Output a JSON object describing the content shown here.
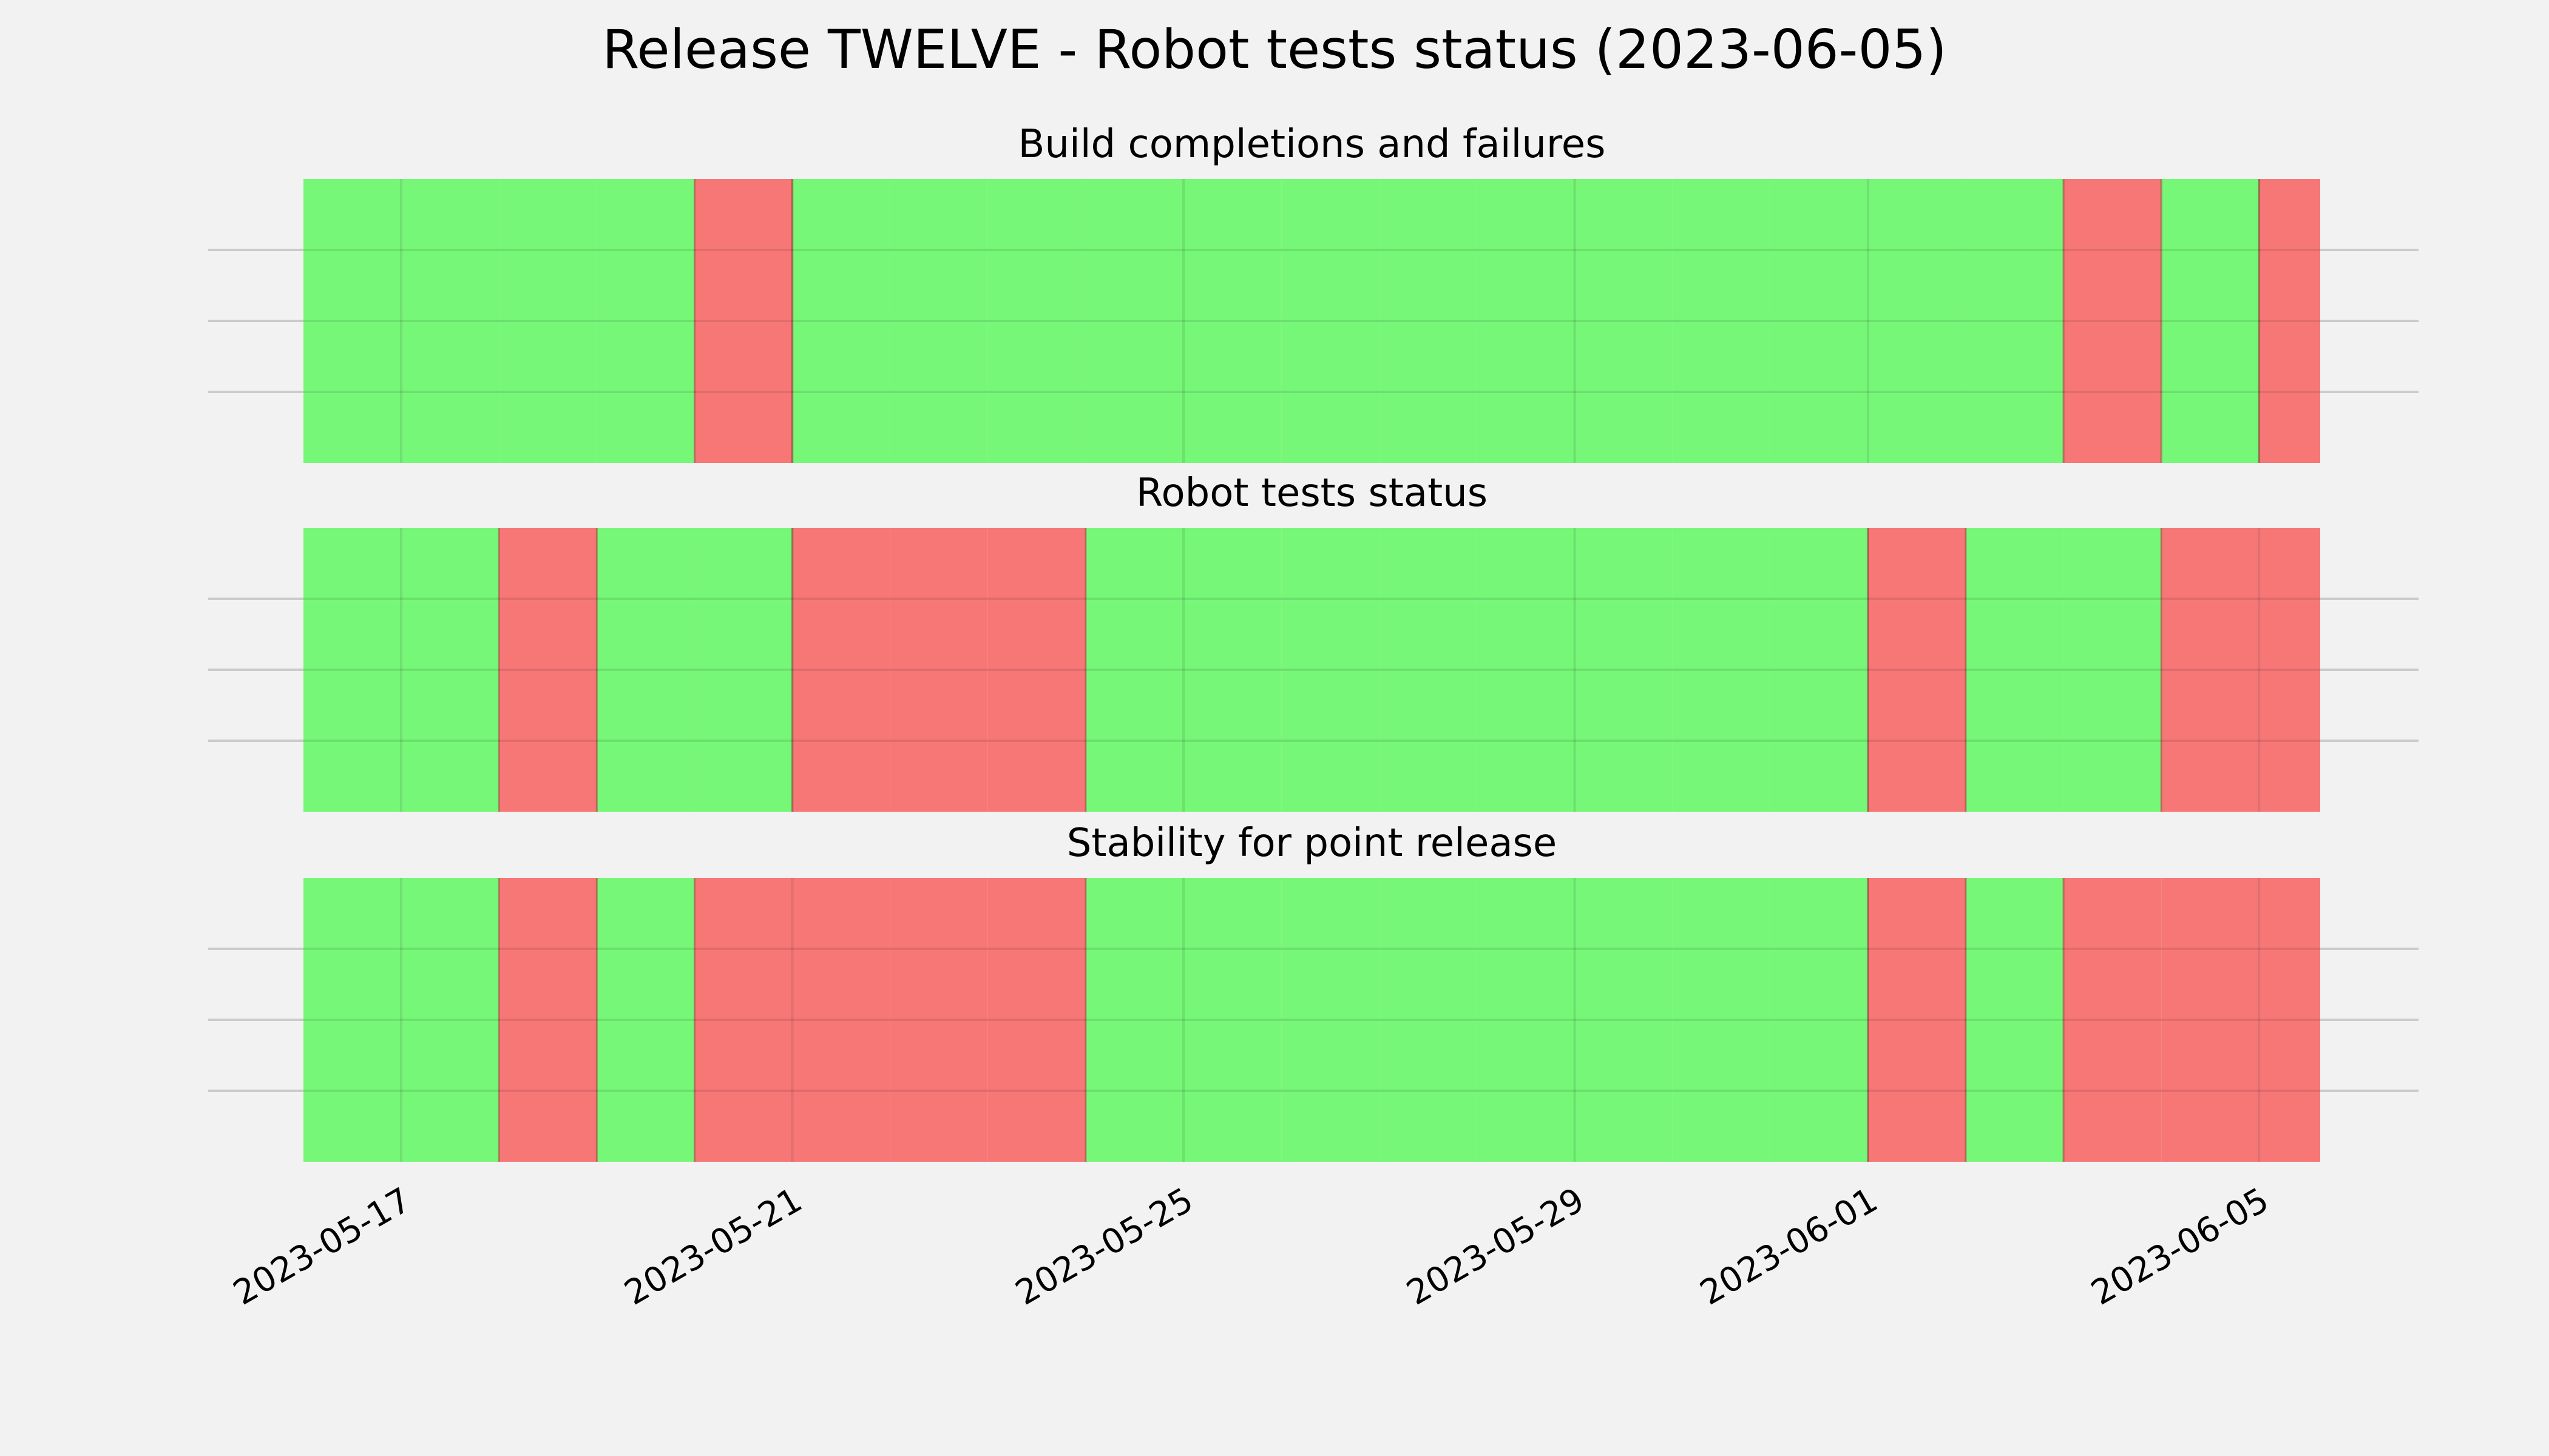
{
  "chart_data": {
    "type": "timeline-status",
    "title": "Release TWELVE - Robot tests status (2023-06-05)",
    "x_range": [
      "2023-05-16",
      "2023-06-05T15:00"
    ],
    "x_ticks": [
      "2023-05-17",
      "2023-05-21",
      "2023-05-25",
      "2023-05-29",
      "2023-06-01",
      "2023-06-05"
    ],
    "colors": {
      "pass": "#77f777",
      "fail": "#f77777",
      "background": "#f2f2f2",
      "grid": "#cbcbcb"
    },
    "panels": [
      {
        "title": "Build completions and failures",
        "days": [
          {
            "date": "2023-05-16",
            "status": "pass"
          },
          {
            "date": "2023-05-17",
            "status": "pass"
          },
          {
            "date": "2023-05-18",
            "status": "pass"
          },
          {
            "date": "2023-05-19",
            "status": "pass"
          },
          {
            "date": "2023-05-20",
            "status": "fail"
          },
          {
            "date": "2023-05-21",
            "status": "pass"
          },
          {
            "date": "2023-05-22",
            "status": "pass"
          },
          {
            "date": "2023-05-23",
            "status": "pass"
          },
          {
            "date": "2023-05-24",
            "status": "pass"
          },
          {
            "date": "2023-05-25",
            "status": "pass"
          },
          {
            "date": "2023-05-26",
            "status": "pass"
          },
          {
            "date": "2023-05-27",
            "status": "pass"
          },
          {
            "date": "2023-05-28",
            "status": "pass"
          },
          {
            "date": "2023-05-29",
            "status": "pass"
          },
          {
            "date": "2023-05-30",
            "status": "pass"
          },
          {
            "date": "2023-05-31",
            "status": "pass"
          },
          {
            "date": "2023-06-01",
            "status": "pass"
          },
          {
            "date": "2023-06-02",
            "status": "pass"
          },
          {
            "date": "2023-06-03",
            "status": "fail"
          },
          {
            "date": "2023-06-04",
            "status": "pass"
          },
          {
            "date": "2023-06-05",
            "status": "fail"
          }
        ]
      },
      {
        "title": "Robot tests status",
        "days": [
          {
            "date": "2023-05-16",
            "status": "pass"
          },
          {
            "date": "2023-05-17",
            "status": "pass"
          },
          {
            "date": "2023-05-18",
            "status": "fail"
          },
          {
            "date": "2023-05-19",
            "status": "pass"
          },
          {
            "date": "2023-05-20",
            "status": "pass"
          },
          {
            "date": "2023-05-21",
            "status": "fail"
          },
          {
            "date": "2023-05-22",
            "status": "fail"
          },
          {
            "date": "2023-05-23",
            "status": "fail"
          },
          {
            "date": "2023-05-24",
            "status": "pass"
          },
          {
            "date": "2023-05-25",
            "status": "pass"
          },
          {
            "date": "2023-05-26",
            "status": "pass"
          },
          {
            "date": "2023-05-27",
            "status": "pass"
          },
          {
            "date": "2023-05-28",
            "status": "pass"
          },
          {
            "date": "2023-05-29",
            "status": "pass"
          },
          {
            "date": "2023-05-30",
            "status": "pass"
          },
          {
            "date": "2023-05-31",
            "status": "pass"
          },
          {
            "date": "2023-06-01",
            "status": "fail"
          },
          {
            "date": "2023-06-02",
            "status": "pass"
          },
          {
            "date": "2023-06-03",
            "status": "pass"
          },
          {
            "date": "2023-06-04",
            "status": "fail"
          },
          {
            "date": "2023-06-05",
            "status": "fail"
          }
        ]
      },
      {
        "title": "Stability for point release",
        "days": [
          {
            "date": "2023-05-16",
            "status": "pass"
          },
          {
            "date": "2023-05-17",
            "status": "pass"
          },
          {
            "date": "2023-05-18",
            "status": "fail"
          },
          {
            "date": "2023-05-19",
            "status": "pass"
          },
          {
            "date": "2023-05-20",
            "status": "fail"
          },
          {
            "date": "2023-05-21",
            "status": "fail"
          },
          {
            "date": "2023-05-22",
            "status": "fail"
          },
          {
            "date": "2023-05-23",
            "status": "fail"
          },
          {
            "date": "2023-05-24",
            "status": "pass"
          },
          {
            "date": "2023-05-25",
            "status": "pass"
          },
          {
            "date": "2023-05-26",
            "status": "pass"
          },
          {
            "date": "2023-05-27",
            "status": "pass"
          },
          {
            "date": "2023-05-28",
            "status": "pass"
          },
          {
            "date": "2023-05-29",
            "status": "pass"
          },
          {
            "date": "2023-05-30",
            "status": "pass"
          },
          {
            "date": "2023-05-31",
            "status": "pass"
          },
          {
            "date": "2023-06-01",
            "status": "fail"
          },
          {
            "date": "2023-06-02",
            "status": "pass"
          },
          {
            "date": "2023-06-03",
            "status": "fail"
          },
          {
            "date": "2023-06-04",
            "status": "fail"
          },
          {
            "date": "2023-06-05",
            "status": "fail"
          }
        ]
      }
    ],
    "grid": true
  }
}
